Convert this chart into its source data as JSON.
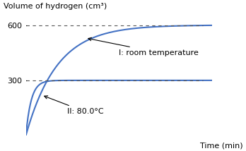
{
  "title": "",
  "ylabel": "Volume of hydrogen (cm³)",
  "xlabel": "Time (min)",
  "curve_color": "#4472C4",
  "dashed_color": "#555555",
  "background_color": "#ffffff",
  "y_plateau_I": 600,
  "y_plateau_II": 300,
  "label_I": "I: room temperature",
  "label_II": "II: 80.0°C",
  "ylim": [
    0,
    720
  ],
  "xlim": [
    0,
    10
  ],
  "yticks": [
    300,
    600
  ],
  "annotation_fontsize": 8
}
